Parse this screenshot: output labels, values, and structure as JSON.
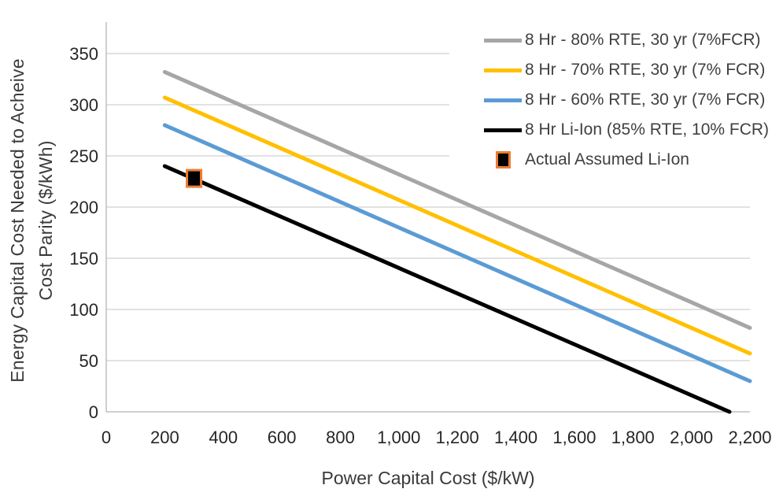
{
  "chart_data": {
    "type": "line",
    "title": "",
    "xlabel": "Power Capital Cost ($/kW)",
    "ylabel": "Energy Capital Cost Needed to Acheive Cost Parity ($/kWh)",
    "ylabel_lines": [
      "Energy Capital Cost Needed to Acheive",
      "Cost Parity ($/kWh)"
    ],
    "xlim": [
      0,
      2200
    ],
    "ylim": [
      0,
      380
    ],
    "x_ticks": [
      0,
      200,
      400,
      600,
      800,
      1000,
      1200,
      1400,
      1600,
      1800,
      2000,
      2200
    ],
    "x_tick_labels": [
      "0",
      "200",
      "400",
      "600",
      "800",
      "1,000",
      "1,200",
      "1,400",
      "1,600",
      "1,800",
      "2,000",
      "2,200"
    ],
    "y_ticks": [
      0,
      50,
      100,
      150,
      200,
      250,
      300,
      350
    ],
    "grid": "horizontal",
    "legend_position": "top-right",
    "series": [
      {
        "name": "8 Hr - 80% RTE, 30 yr (7%FCR)",
        "color": "#A6A6A6",
        "points": [
          [
            200,
            332
          ],
          [
            2200,
            82
          ]
        ]
      },
      {
        "name": "8 Hr - 70% RTE, 30 yr (7% FCR)",
        "color": "#FFC000",
        "points": [
          [
            200,
            307
          ],
          [
            2200,
            57
          ]
        ]
      },
      {
        "name": "8 Hr - 60% RTE, 30 yr (7% FCR)",
        "color": "#5B9BD5",
        "points": [
          [
            200,
            280
          ],
          [
            2200,
            30
          ]
        ]
      },
      {
        "name": "8 Hr Li-Ion (85% RTE, 10% FCR)",
        "color": "#000000",
        "points": [
          [
            200,
            240
          ],
          [
            2130,
            0
          ]
        ]
      }
    ],
    "markers": [
      {
        "name": "Actual Assumed Li-Ion",
        "shape": "square",
        "fill": "#000000",
        "border": "#ED7D31",
        "point": [
          300,
          228
        ]
      }
    ]
  },
  "colors": {
    "background": "#FFFFFF",
    "gridline": "#D9D9D9",
    "axis_line": "#BFBFBF",
    "tick_text": "#262626",
    "title_text": "#3A3A3A",
    "legend_text": "#404040",
    "marker_border": "#ED7D31"
  }
}
